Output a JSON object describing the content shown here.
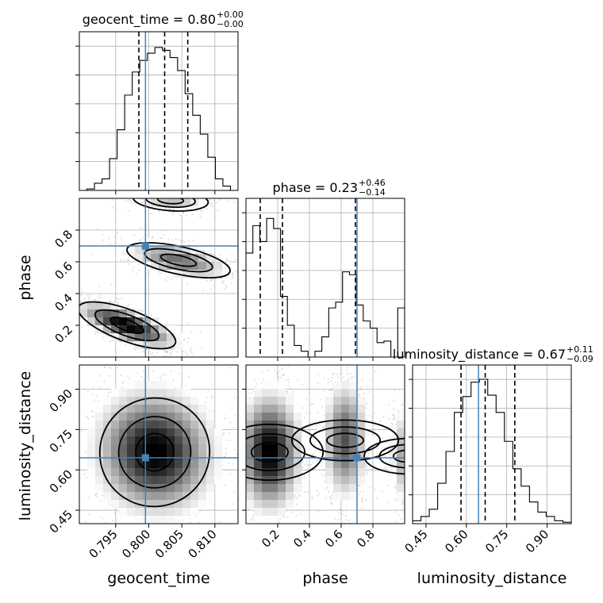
{
  "chart_data": {
    "type": "corner",
    "parameters": [
      {
        "name": "geocent_time",
        "title": "geocent_time = 0.80",
        "title_plus": "+0.00",
        "title_minus": "−0.00",
        "range": [
          0.7895,
          0.8135
        ],
        "ticks": [
          0.795,
          0.8,
          0.805,
          0.81
        ],
        "tick_labels": [
          "0.795",
          "0.800",
          "0.805",
          "0.810"
        ],
        "truth": 0.7995,
        "quantiles": [
          0.7985,
          0.8024,
          0.8059
        ],
        "hist": [
          0.0,
          0.01,
          0.05,
          0.08,
          0.22,
          0.42,
          0.66,
          0.82,
          0.9,
          0.95,
          0.99,
          0.97,
          0.92,
          0.83,
          0.67,
          0.52,
          0.39,
          0.23,
          0.08,
          0.03,
          0.0
        ]
      },
      {
        "name": "phase",
        "title": "phase = 0.23",
        "title_plus": "+0.46",
        "title_minus": "−0.14",
        "range": [
          0.0,
          1.0
        ],
        "ticks": [
          0.2,
          0.4,
          0.6,
          0.8
        ],
        "tick_labels": [
          "0.2",
          "0.4",
          "0.6",
          "0.8"
        ],
        "truth": 0.7,
        "quantiles": [
          0.09,
          0.23,
          0.69
        ],
        "hist": [
          0.72,
          0.91,
          0.8,
          0.96,
          0.89,
          0.42,
          0.22,
          0.08,
          0.04,
          0.0,
          0.04,
          0.14,
          0.34,
          0.38,
          0.59,
          0.57,
          0.36,
          0.25,
          0.2,
          0.1,
          0.11,
          0.0,
          0.34
        ]
      },
      {
        "name": "luminosity_distance",
        "title": "luminosity_distance = 0.67",
        "title_plus": "+0.11",
        "title_minus": "−0.09",
        "range": [
          0.4,
          0.99
        ],
        "ticks": [
          0.45,
          0.6,
          0.75,
          0.9
        ],
        "tick_labels": [
          "0.45",
          "0.60",
          "0.75",
          "0.90"
        ],
        "truth": 0.645,
        "quantiles": [
          0.58,
          0.67,
          0.78
        ],
        "hist": [
          0.02,
          0.05,
          0.1,
          0.28,
          0.5,
          0.77,
          0.88,
          0.98,
          1.0,
          0.89,
          0.77,
          0.57,
          0.38,
          0.26,
          0.15,
          0.08,
          0.05,
          0.02,
          0.01
        ]
      }
    ],
    "grid": true
  }
}
